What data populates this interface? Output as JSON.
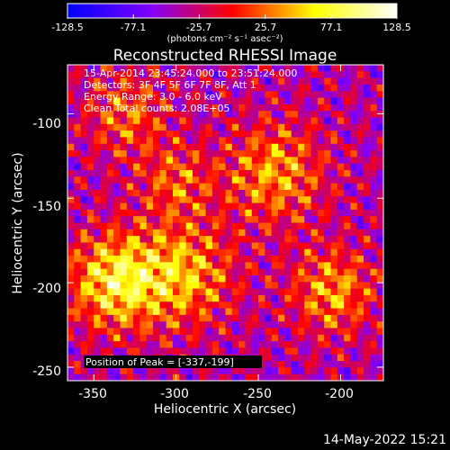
{
  "colorbar": {
    "ticks": [
      "-128.5",
      "-77.1",
      "-25.7",
      "25.7",
      "77.1",
      "128.5"
    ],
    "tick_values": [
      -128.5,
      -77.1,
      -25.7,
      25.7,
      77.1,
      128.5
    ],
    "units": "(photons cm⁻² s⁻¹ asec⁻²)",
    "colors": [
      "#0000ff",
      "#7f00ff",
      "#ff0000",
      "#ffff00",
      "#ffffff"
    ]
  },
  "chart_data": {
    "type": "heatmap",
    "title": "Reconstructed RHESSI Image",
    "xlabel": "Heliocentric X (arcsec)",
    "ylabel": "Heliocentric Y (arcsec)",
    "xlim": [
      -366,
      -174
    ],
    "ylim": [
      -258,
      -71
    ],
    "xticks": [
      -350,
      -300,
      -250,
      -200
    ],
    "yticks": [
      -100,
      -150,
      -200,
      -250
    ],
    "annotations": [
      "15-Apr-2014 23:45:24.000 to 23:51:24.000",
      "Detectors: 3F 4F 5F 6F 7F 8F, Att 1",
      "Energy Range: 3.0 - 6.0 keV",
      "Clean    Total counts: 2.08E+05"
    ],
    "peak_label": "Position of Peak = [-337,-199]",
    "peak": [
      -337,
      -199
    ],
    "value_range": [
      -128.5,
      128.5
    ]
  },
  "footer": {
    "date": "14-May-2022 15:21"
  }
}
